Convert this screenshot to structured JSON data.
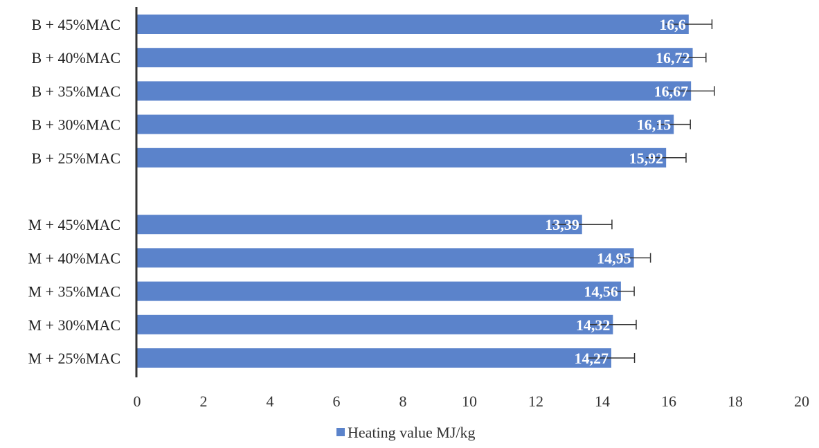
{
  "chart_data": {
    "type": "bar",
    "orientation": "horizontal",
    "categories": [
      "B + 45%MAC",
      "B + 40%MAC",
      "B + 35%MAC",
      "B + 30%MAC",
      "B + 25%MAC",
      "M + 45%MAC",
      "M + 40%MAC",
      "M + 35%MAC",
      "M + 30%MAC",
      "M + 25%MAC"
    ],
    "series": [
      {
        "name": "Heating value MJ/kg",
        "values": [
          16.6,
          16.72,
          16.67,
          16.15,
          15.92,
          13.39,
          14.95,
          14.56,
          14.32,
          14.27
        ],
        "labels": [
          "16,6",
          "16,72",
          "16,67",
          "16,15",
          "15,92",
          "13,39",
          "14,95",
          "14,56",
          "14,32",
          "14,27"
        ],
        "error": [
          0.7,
          0.4,
          0.7,
          0.5,
          0.6,
          0.9,
          0.5,
          0.4,
          0.7,
          0.7
        ],
        "color": "#5b83cb"
      }
    ],
    "xlim": [
      0,
      20
    ],
    "xticks": [
      "0",
      "2",
      "4",
      "6",
      "8",
      "10",
      "12",
      "14",
      "16",
      "18",
      "20"
    ],
    "group_gap_after_index": 4,
    "gridlines": false,
    "legend_position": "bottom",
    "title": "",
    "xlabel": "",
    "ylabel": ""
  },
  "legend": {
    "label": "Heating value MJ/kg",
    "color": "#5b83cb"
  }
}
